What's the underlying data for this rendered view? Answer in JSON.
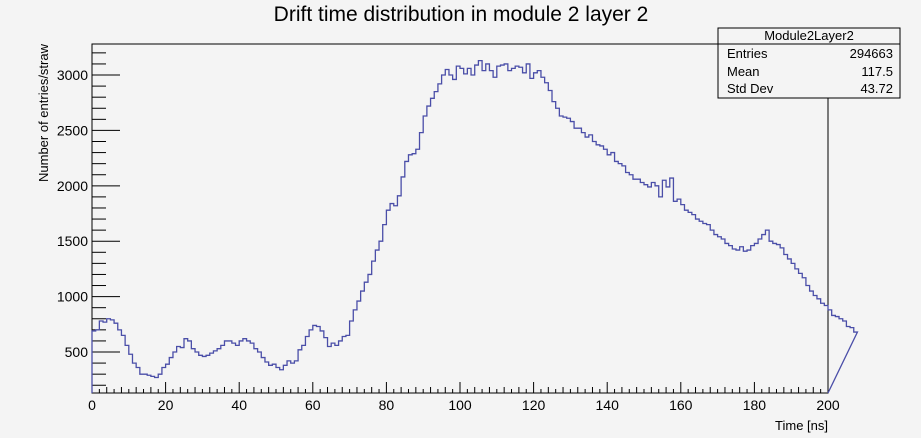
{
  "chart_data": {
    "type": "histogram",
    "title": "Drift time distribution in module 2 layer 2",
    "xlabel": "Time [ns]",
    "ylabel": "Number of entries/straw",
    "xlim": [
      0,
      200
    ],
    "ylim": [
      130,
      3280
    ],
    "xticks": [
      0,
      20,
      40,
      60,
      80,
      100,
      120,
      140,
      160,
      180,
      200
    ],
    "yticks": [
      500,
      1000,
      1500,
      2000,
      2500,
      3000
    ],
    "bin_width": 1,
    "line_color": "#4a4ea8",
    "grid": false,
    "stats_box": {
      "name": "Module2Layer2",
      "rows": [
        {
          "label": "Entries",
          "value": "294663"
        },
        {
          "label": "Mean",
          "value": "117.5"
        },
        {
          "label": "Std Dev",
          "value": "43.72"
        }
      ]
    },
    "values": [
      690,
      700,
      780,
      770,
      800,
      790,
      760,
      700,
      650,
      560,
      480,
      400,
      360,
      300,
      300,
      290,
      280,
      270,
      300,
      360,
      390,
      450,
      500,
      550,
      540,
      620,
      600,
      530,
      500,
      470,
      460,
      470,
      490,
      510,
      530,
      560,
      600,
      600,
      580,
      560,
      600,
      620,
      600,
      580,
      530,
      500,
      450,
      410,
      380,
      390,
      360,
      340,
      380,
      420,
      400,
      420,
      520,
      560,
      640,
      700,
      740,
      730,
      690,
      630,
      550,
      580,
      560,
      600,
      640,
      650,
      780,
      880,
      960,
      1050,
      1130,
      1200,
      1320,
      1420,
      1500,
      1650,
      1780,
      1840,
      1820,
      1910,
      2080,
      2220,
      2280,
      2290,
      2330,
      2480,
      2630,
      2720,
      2790,
      2850,
      2920,
      3000,
      3050,
      3000,
      2960,
      3080,
      3060,
      3010,
      3060,
      3000,
      3090,
      3130,
      3040,
      3100,
      3040,
      2980,
      3080,
      3090,
      3100,
      3040,
      3060,
      3080,
      3070,
      3020,
      3100,
      2970,
      3020,
      3040,
      2980,
      2930,
      2860,
      2760,
      2700,
      2630,
      2620,
      2610,
      2580,
      2520,
      2520,
      2480,
      2440,
      2460,
      2400,
      2370,
      2360,
      2330,
      2280,
      2300,
      2220,
      2200,
      2180,
      2120,
      2100,
      2060,
      2060,
      2030,
      2010,
      1990,
      2030,
      2000,
      1900,
      2050,
      1990,
      2070,
      1860,
      1880,
      1830,
      1780,
      1760,
      1740,
      1700,
      1680,
      1660,
      1650,
      1600,
      1560,
      1540,
      1520,
      1480,
      1460,
      1430,
      1420,
      1450,
      1410,
      1420,
      1460,
      1480,
      1520,
      1560,
      1600,
      1500,
      1480,
      1470,
      1440,
      1380,
      1340,
      1300,
      1250,
      1210,
      1170,
      1100,
      1050,
      1010,
      980,
      940,
      920,
      880,
      830,
      820,
      800,
      780,
      730,
      720,
      680
    ]
  }
}
